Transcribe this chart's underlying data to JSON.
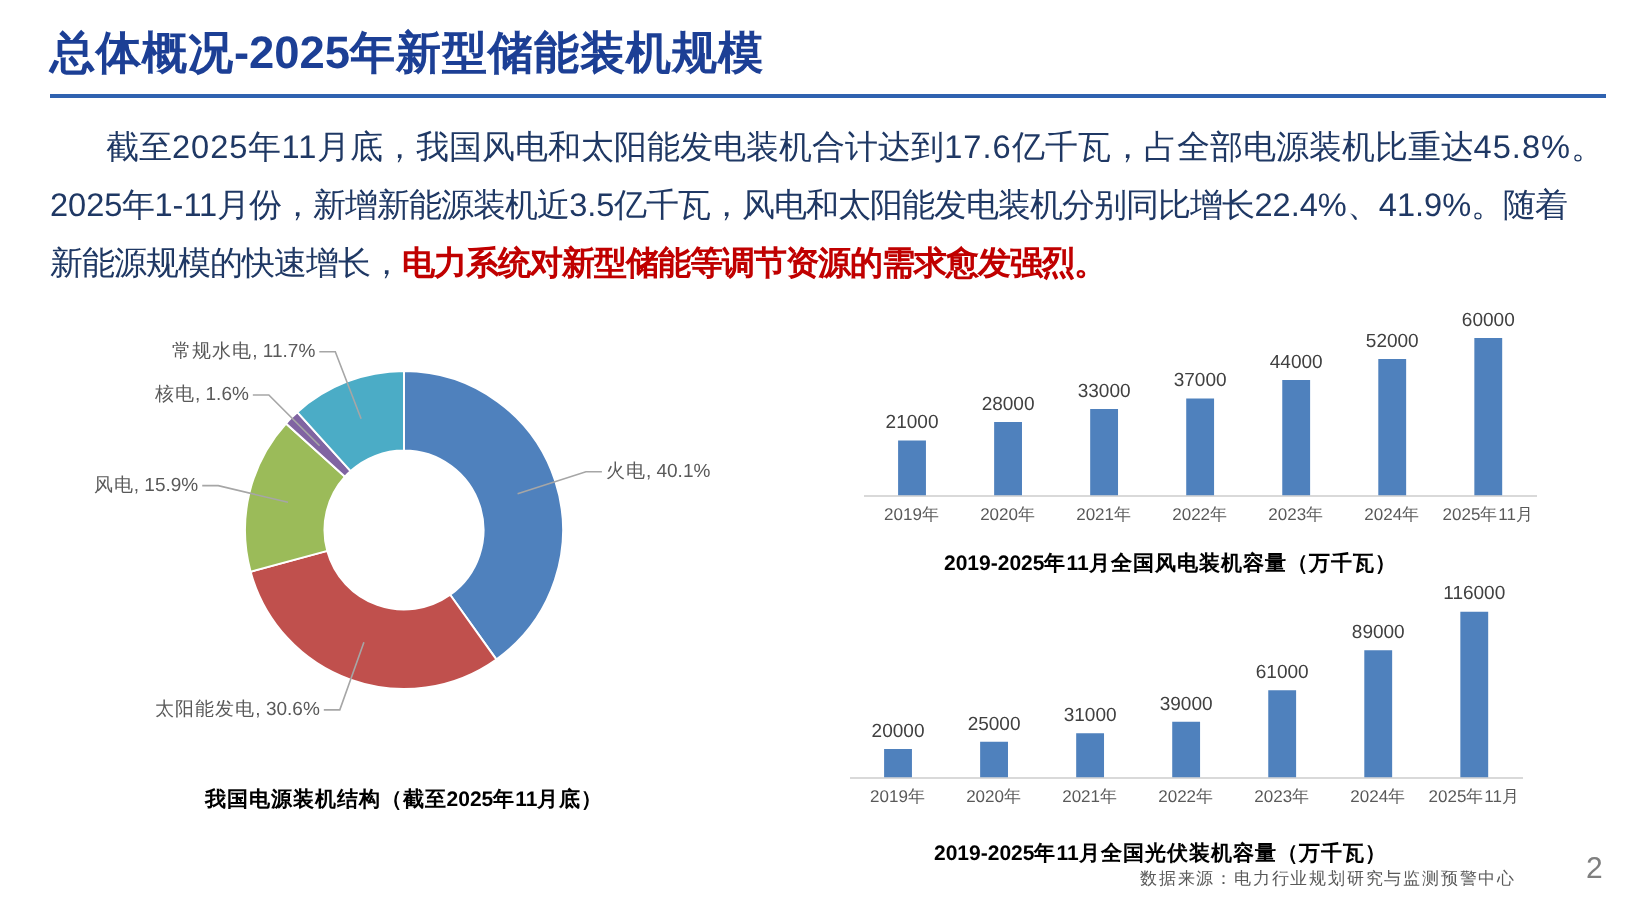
{
  "chart_data": [
    {
      "type": "other",
      "title": "总体概况-2025年新型储能装机规模",
      "annotations": [
        "截至2025年11月底，我国风电和太阳能发电装机合计达到17.6亿千瓦，占全部电源装机比重达45.8%。",
        "2025年1-11月份，新增新能源装机近3.5亿千瓦，风电和太阳能发电装机分别同比增长22.4%、41.9%。随着",
        "新能源规模的快速增长，",
        "电力系统对新型储能等调节资源的需求愈发强烈。"
      ]
    },
    {
      "type": "donut",
      "title": "我国电源装机结构（截至2025年11月底）",
      "categories": [
        "火电",
        "太阳能发电",
        "风电",
        "核电",
        "常规水电"
      ],
      "values": [
        40.1,
        30.6,
        15.9,
        1.6,
        11.7
      ],
      "colors": [
        "#4f81bd",
        "#c0504d",
        "#9bbb59",
        "#8064a2",
        "#4bacc6"
      ],
      "value_labels": [
        ", 40.1%",
        ", 30.6%",
        ", 15.9%",
        ", 1.6%",
        ", 11.7%"
      ]
    },
    {
      "type": "bar",
      "title": "2019-2025年11月全国风电装机容量（万千瓦）",
      "categories": [
        "2019年",
        "2020年",
        "2021年",
        "2022年",
        "2023年",
        "2024年",
        "2025年11月"
      ],
      "values": [
        21000,
        28000,
        33000,
        37000,
        44000,
        52000,
        60000
      ],
      "color": "#4f81bd",
      "data_labels": true,
      "tick_labels": "x"
    },
    {
      "type": "bar",
      "title": "2019-2025年11月全国光伏装机容量（万千瓦）",
      "categories": [
        "2019年",
        "2020年",
        "2021年",
        "2022年",
        "2023年",
        "2024年",
        "2025年11月"
      ],
      "values": [
        20000,
        25000,
        31000,
        39000,
        61000,
        89000,
        116000
      ],
      "color": "#4f81bd",
      "data_labels": true,
      "tick_labels": "x",
      "annotations": [
        "数据来源：电力行业规划研究与监测预警中心",
        "2"
      ]
    }
  ]
}
